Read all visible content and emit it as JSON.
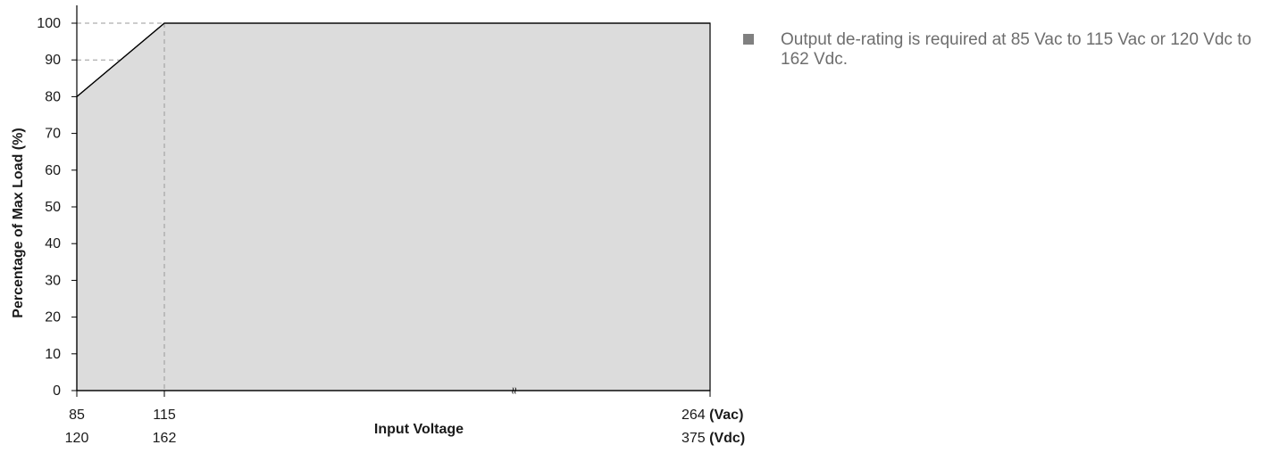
{
  "chart_data": {
    "type": "area",
    "title": "",
    "ylabel": "Percentage of Max Load (%)",
    "xlabel": "Input Voltage",
    "ylim": [
      0,
      100
    ],
    "yticks": [
      0,
      10,
      20,
      30,
      40,
      50,
      60,
      70,
      80,
      90,
      100
    ],
    "x_scales": [
      {
        "unit": "Vac",
        "ticks": [
          85,
          115,
          264
        ]
      },
      {
        "unit": "Vdc",
        "ticks": [
          120,
          162,
          375
        ]
      }
    ],
    "series": [
      {
        "x": [
          85,
          115,
          264
        ],
        "y": [
          80,
          100,
          100
        ]
      }
    ],
    "reference_lines": {
      "vertical_x": 115,
      "horizontal_y": [
        90,
        100
      ]
    },
    "axis_break": "≈",
    "grid": false,
    "colors": {
      "fill": "#dcdcdc",
      "line": "#000000",
      "dash": "#9a9a9a"
    }
  },
  "x_tick_rows": [
    [
      "85",
      "115",
      "264"
    ],
    [
      "120",
      "162",
      "375"
    ]
  ],
  "x_units": [
    "(Vac)",
    "(Vdc)"
  ],
  "note": {
    "bullet_icon": "square-bullet",
    "text": "Output de-rating is required at 85 Vac to 115 Vac or 120 Vdc to 162 Vdc."
  }
}
